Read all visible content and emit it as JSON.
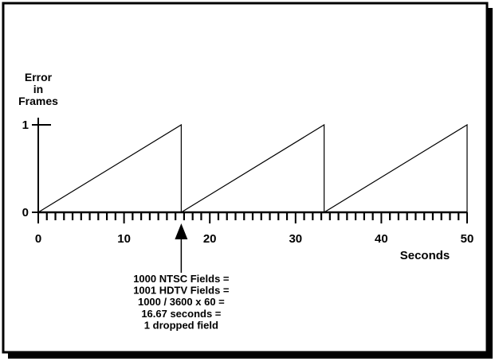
{
  "chart_data": {
    "type": "line",
    "ylabel_lines": [
      "Error",
      "in",
      "Frames"
    ],
    "xlabel": "Seconds",
    "x_ticks_major": [
      0,
      10,
      20,
      30,
      40,
      50
    ],
    "x_tick_labels": [
      "0",
      "10",
      "20",
      "30",
      "40",
      "50"
    ],
    "y_ticks": [
      0,
      1
    ],
    "y_tick_labels": [
      "0",
      "1"
    ],
    "xlim": [
      0,
      50
    ],
    "ylim": [
      0,
      1
    ],
    "minor_tick_step_seconds": 1,
    "grid": false,
    "series": [
      {
        "x": [
          0,
          16.67,
          16.67,
          33.33,
          33.33,
          50,
          50
        ],
        "y": [
          0,
          1,
          0,
          1,
          0,
          1,
          0
        ]
      }
    ],
    "annotation": {
      "x": 16.67,
      "lines": [
        "1000 NTSC Fields =",
        "1001 HDTV Fields =",
        "1000 / 3600 x 60 =",
        "16.67 seconds =",
        "1 dropped field"
      ]
    }
  },
  "colors": {
    "background": "#ffffff",
    "ink": "#000000"
  }
}
